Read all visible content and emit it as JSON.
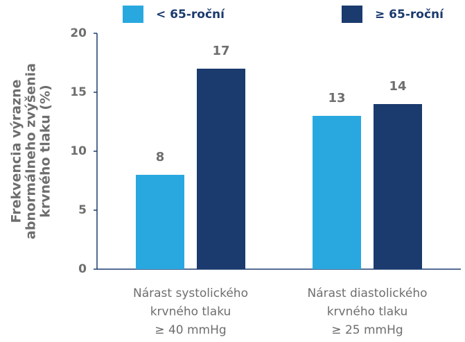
{
  "chart_data": {
    "type": "bar",
    "y_label": [
      "Frekvencia výrazne",
      "abnormálneho zvýšenia",
      "krvného tlaku (%)"
    ],
    "categories": [
      [
        "Nárast systolického",
        "krvného tlaku",
        "≥ 40 mmHg"
      ],
      [
        "Nárast diastolického",
        "krvného tlaku",
        "≥ 25 mmHg"
      ]
    ],
    "series": [
      {
        "name": "< 65-roční",
        "color": "#29a8e0",
        "values": [
          8,
          13
        ]
      },
      {
        "name": "≥ 65-roční",
        "color": "#1b3a6e",
        "values": [
          17,
          14
        ]
      }
    ],
    "ylim": [
      0,
      20
    ],
    "yticks": [
      0,
      5,
      10,
      15,
      20
    ],
    "grid": false
  }
}
